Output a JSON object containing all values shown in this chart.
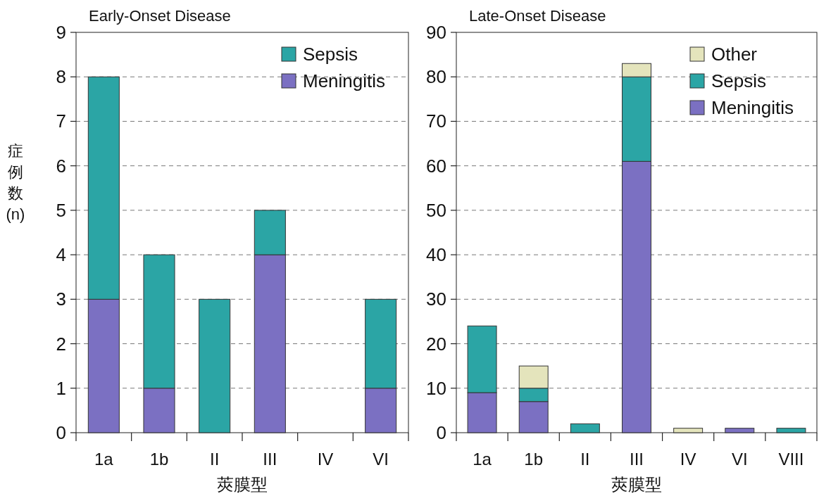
{
  "chart_data": [
    {
      "type": "bar",
      "title": "Early-Onset Disease",
      "xlabel": "莢膜型",
      "ylabel": "症例数(n)",
      "categories": [
        "1a",
        "1b",
        "II",
        "III",
        "IV",
        "VI"
      ],
      "stacked": true,
      "ylim": [
        0,
        9
      ],
      "yticks": [
        0,
        1,
        2,
        3,
        4,
        5,
        6,
        7,
        8,
        9
      ],
      "grid": "y",
      "legend": "top right",
      "series": [
        {
          "name": "Meningitis",
          "color": "#7b70c2",
          "values": [
            3,
            1,
            0,
            4,
            0,
            1
          ]
        },
        {
          "name": "Sepsis",
          "color": "#2ba5a5",
          "values": [
            5,
            3,
            3,
            1,
            0,
            2
          ]
        }
      ]
    },
    {
      "type": "bar",
      "title": "Late-Onset Disease",
      "xlabel": "莢膜型",
      "categories": [
        "1a",
        "1b",
        "II",
        "III",
        "IV",
        "VI",
        "VIII"
      ],
      "stacked": true,
      "ylim": [
        0,
        90
      ],
      "yticks": [
        0,
        10,
        20,
        30,
        40,
        50,
        60,
        70,
        80,
        90
      ],
      "grid": "y",
      "legend": "top right",
      "series": [
        {
          "name": "Meningitis",
          "color": "#7b70c2",
          "values": [
            9,
            7,
            0,
            61,
            0,
            1,
            0
          ]
        },
        {
          "name": "Sepsis",
          "color": "#2ba5a5",
          "values": [
            15,
            3,
            2,
            19,
            0,
            0,
            1
          ]
        },
        {
          "name": "Other",
          "color": "#e4e4bc",
          "values": [
            0,
            5,
            0,
            3,
            1,
            0,
            0
          ]
        }
      ]
    }
  ]
}
